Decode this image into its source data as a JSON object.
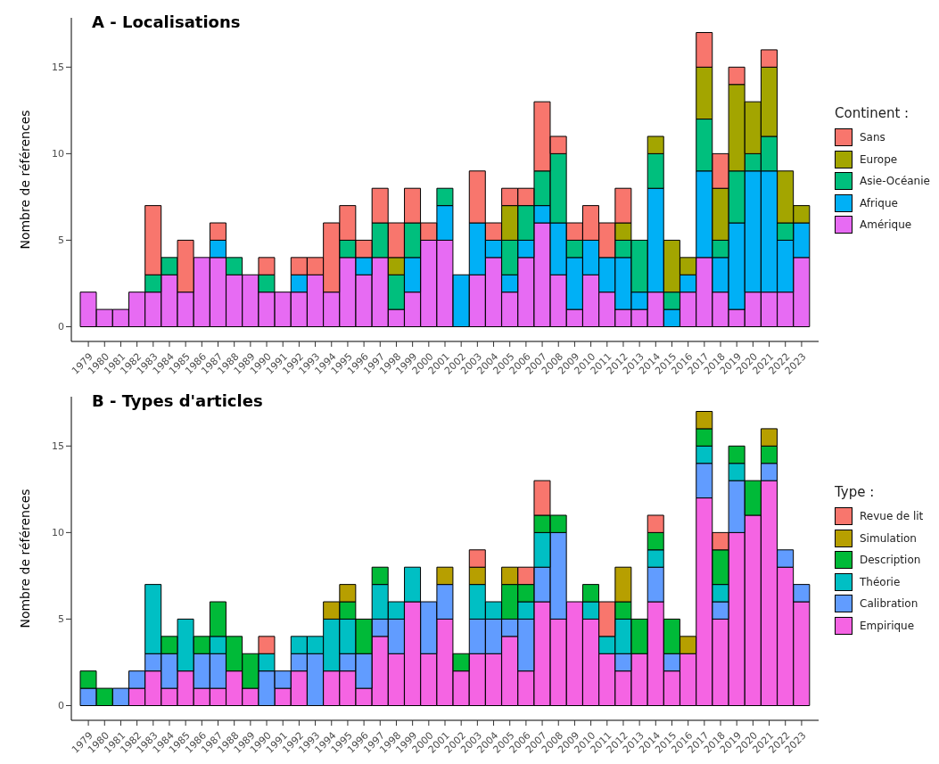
{
  "chart_data": [
    {
      "type": "bar",
      "stacked": true,
      "title": "A - Localisations",
      "ylabel": "Nombre de références",
      "legend_title": "Continent :",
      "legend": "right",
      "grid": false,
      "categories": [
        "1979",
        "1980",
        "1981",
        "1982",
        "1983",
        "1984",
        "1985",
        "1986",
        "1987",
        "1988",
        "1989",
        "1990",
        "1991",
        "1992",
        "1993",
        "1994",
        "1995",
        "1996",
        "1997",
        "1998",
        "1999",
        "2000",
        "2001",
        "2002",
        "2003",
        "2004",
        "2005",
        "2006",
        "2007",
        "2008",
        "2009",
        "2010",
        "2011",
        "2012",
        "2013",
        "2014",
        "2015",
        "2016",
        "2017",
        "2018",
        "2019",
        "2020",
        "2021",
        "2022",
        "2023"
      ],
      "ylim": [
        -0.85,
        17.85
      ],
      "yticks": [
        0,
        5,
        10,
        15
      ],
      "series": [
        {
          "name": "Amérique",
          "color": "#e76bf3",
          "values": [
            2,
            1,
            1,
            2,
            2,
            3,
            2,
            4,
            4,
            3,
            3,
            2,
            2,
            2,
            3,
            2,
            4,
            3,
            4,
            1,
            2,
            5,
            5,
            0,
            3,
            4,
            2,
            4,
            6,
            3,
            1,
            3,
            2,
            1,
            1,
            2,
            0,
            2,
            4,
            2,
            1,
            2,
            2,
            2,
            4
          ]
        },
        {
          "name": "Afrique",
          "color": "#00b0f6",
          "values": [
            0,
            0,
            0,
            0,
            0,
            0,
            0,
            0,
            1,
            0,
            0,
            0,
            0,
            1,
            0,
            0,
            0,
            1,
            0,
            0,
            2,
            0,
            2,
            3,
            3,
            1,
            1,
            1,
            1,
            3,
            3,
            2,
            2,
            3,
            1,
            6,
            1,
            1,
            5,
            2,
            5,
            7,
            7,
            3,
            2
          ]
        },
        {
          "name": "Asie-Océanie",
          "color": "#00bf7d",
          "values": [
            0,
            0,
            0,
            0,
            1,
            1,
            0,
            0,
            0,
            1,
            0,
            1,
            0,
            0,
            0,
            0,
            1,
            0,
            2,
            2,
            2,
            0,
            1,
            0,
            0,
            0,
            2,
            2,
            2,
            4,
            1,
            0,
            0,
            1,
            3,
            2,
            1,
            0,
            3,
            1,
            3,
            1,
            2,
            1,
            0
          ]
        },
        {
          "name": "Europe",
          "color": "#a3a500",
          "values": [
            0,
            0,
            0,
            0,
            0,
            0,
            0,
            0,
            0,
            0,
            0,
            0,
            0,
            0,
            0,
            0,
            0,
            0,
            0,
            1,
            0,
            0,
            0,
            0,
            0,
            0,
            2,
            0,
            0,
            0,
            0,
            0,
            0,
            1,
            0,
            1,
            3,
            1,
            3,
            3,
            5,
            3,
            4,
            3,
            1
          ]
        },
        {
          "name": "Sans",
          "color": "#f8766d",
          "values": [
            0,
            0,
            0,
            0,
            4,
            0,
            3,
            0,
            1,
            0,
            0,
            1,
            0,
            1,
            1,
            4,
            2,
            1,
            2,
            2,
            2,
            1,
            0,
            0,
            3,
            1,
            1,
            1,
            4,
            1,
            1,
            2,
            2,
            2,
            0,
            0,
            0,
            0,
            2,
            2,
            1,
            0,
            1,
            0,
            0
          ]
        }
      ]
    },
    {
      "type": "bar",
      "stacked": true,
      "title": "B - Types d'articles",
      "ylabel": "Nombre de références",
      "legend_title": "Type :",
      "legend": "right",
      "grid": false,
      "categories": [
        "1979",
        "1980",
        "1981",
        "1982",
        "1983",
        "1984",
        "1985",
        "1986",
        "1987",
        "1988",
        "1989",
        "1990",
        "1991",
        "1992",
        "1993",
        "1994",
        "1995",
        "1996",
        "1997",
        "1998",
        "1999",
        "2000",
        "2001",
        "2002",
        "2003",
        "2004",
        "2005",
        "2006",
        "2007",
        "2008",
        "2009",
        "2010",
        "2011",
        "2012",
        "2013",
        "2014",
        "2015",
        "2016",
        "2017",
        "2018",
        "2019",
        "2020",
        "2021",
        "2022",
        "2023"
      ],
      "ylim": [
        -0.85,
        17.85
      ],
      "yticks": [
        0,
        5,
        10,
        15
      ],
      "series": [
        {
          "name": "Empirique",
          "color": "#f564e3",
          "values": [
            0,
            0,
            0,
            1,
            2,
            1,
            2,
            1,
            1,
            2,
            1,
            0,
            1,
            2,
            0,
            2,
            2,
            1,
            4,
            3,
            6,
            3,
            5,
            2,
            3,
            3,
            4,
            2,
            6,
            5,
            6,
            5,
            3,
            2,
            3,
            6,
            2,
            3,
            12,
            5,
            10,
            11,
            13,
            8,
            6
          ]
        },
        {
          "name": "Calibration",
          "color": "#619cff",
          "values": [
            1,
            0,
            1,
            1,
            1,
            2,
            0,
            2,
            2,
            0,
            0,
            2,
            1,
            1,
            3,
            0,
            1,
            2,
            1,
            2,
            0,
            3,
            2,
            0,
            2,
            2,
            1,
            3,
            2,
            5,
            0,
            0,
            0,
            1,
            0,
            2,
            1,
            0,
            2,
            1,
            3,
            0,
            1,
            1,
            1
          ]
        },
        {
          "name": "Théorie",
          "color": "#00bfc4",
          "values": [
            0,
            0,
            0,
            0,
            4,
            0,
            3,
            0,
            1,
            0,
            0,
            1,
            0,
            1,
            1,
            3,
            2,
            0,
            2,
            1,
            2,
            0,
            0,
            0,
            2,
            1,
            0,
            1,
            2,
            0,
            0,
            1,
            1,
            2,
            0,
            1,
            0,
            0,
            1,
            1,
            1,
            0,
            0,
            0,
            0
          ]
        },
        {
          "name": "Description",
          "color": "#00ba38",
          "values": [
            1,
            1,
            0,
            0,
            0,
            1,
            0,
            1,
            2,
            2,
            2,
            0,
            0,
            0,
            0,
            0,
            1,
            2,
            1,
            0,
            0,
            0,
            0,
            1,
            0,
            0,
            2,
            1,
            1,
            1,
            0,
            1,
            0,
            1,
            2,
            1,
            2,
            0,
            1,
            2,
            1,
            2,
            1,
            0,
            0
          ]
        },
        {
          "name": "Simulation",
          "color": "#b79f00",
          "values": [
            0,
            0,
            0,
            0,
            0,
            0,
            0,
            0,
            0,
            0,
            0,
            0,
            0,
            0,
            0,
            1,
            1,
            0,
            0,
            0,
            0,
            0,
            1,
            0,
            1,
            0,
            1,
            0,
            0,
            0,
            0,
            0,
            0,
            2,
            0,
            0,
            0,
            1,
            1,
            0,
            0,
            0,
            1,
            0,
            0
          ]
        },
        {
          "name": "Revue de lit",
          "color": "#f8766d",
          "values": [
            0,
            0,
            0,
            0,
            0,
            0,
            0,
            0,
            0,
            0,
            0,
            1,
            0,
            0,
            0,
            0,
            0,
            0,
            0,
            0,
            0,
            0,
            0,
            0,
            1,
            0,
            0,
            1,
            2,
            0,
            0,
            0,
            2,
            0,
            0,
            1,
            0,
            0,
            0,
            1,
            0,
            0,
            0,
            0,
            0
          ]
        }
      ]
    }
  ]
}
